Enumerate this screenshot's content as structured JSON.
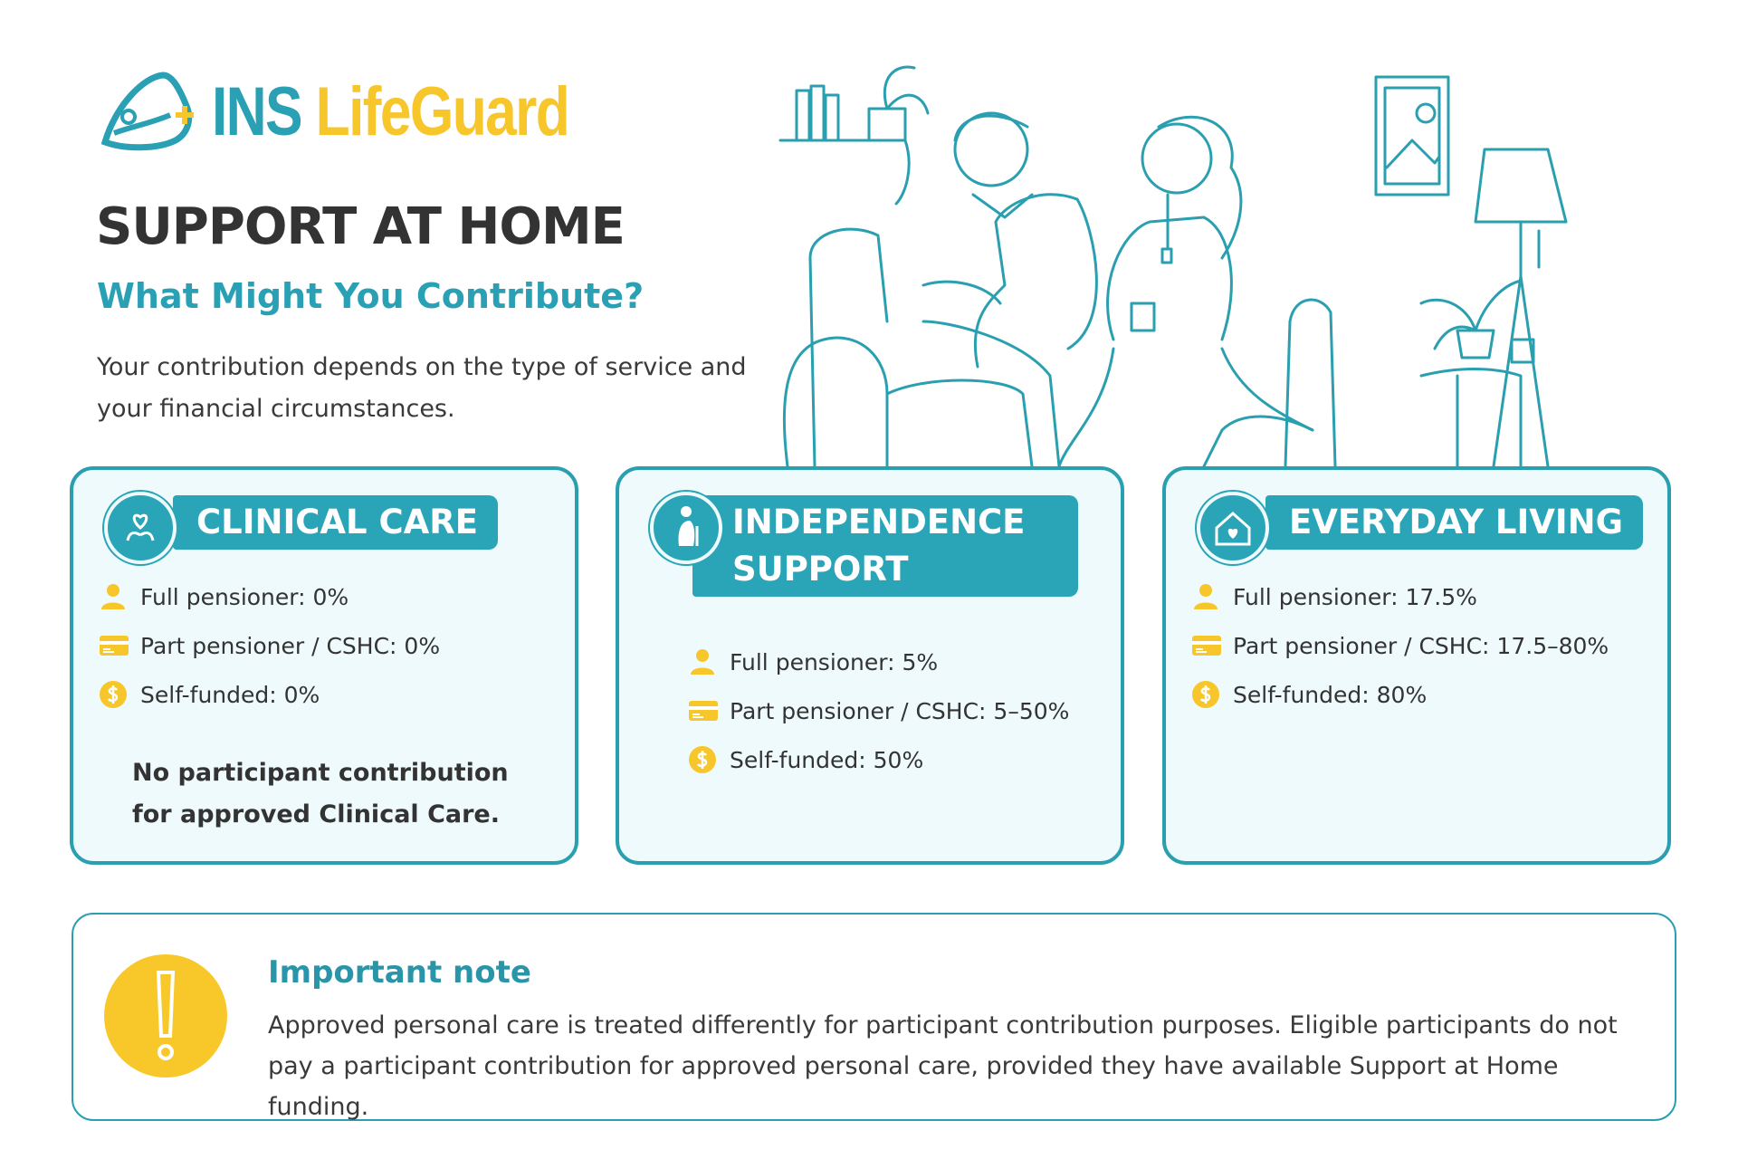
{
  "logo": {
    "part1": "INS",
    "part2": "LifeGuard"
  },
  "header": {
    "title": "SUPPORT AT HOME",
    "subtitle": "What Might You Contribute?",
    "intro": "Your contribution depends on the type of service and your financial circumstances."
  },
  "cards": [
    {
      "title": "CLINICAL CARE",
      "items": [
        "Full pensioner: 0%",
        "Part pensioner / CSHC: 0%",
        "Self-funded: 0%"
      ],
      "note": "No participant contribution for approved Clinical Care."
    },
    {
      "title": "INDEPENDENCE SUPPORT",
      "items": [
        "Full pensioner: 5%",
        "Part pensioner / CSHC: 5–50%",
        "Self-funded: 50%"
      ]
    },
    {
      "title": "EVERYDAY LIVING",
      "items": [
        "Full pensioner: 17.5%",
        "Part pensioner / CSHC: 17.5–80%",
        "Self-funded: 80%"
      ]
    }
  ],
  "important_note": {
    "title": "Important note",
    "text": "Approved personal care is treated differently for participant contribution purposes. Eligible participants do not pay a participant contribution for approved personal care, provided they have available Support at Home funding."
  }
}
